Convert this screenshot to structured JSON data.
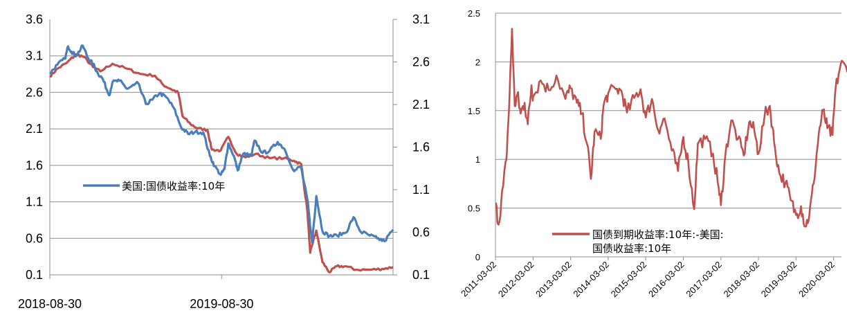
{
  "colors": {
    "blue": "#4a7ebb",
    "red": "#c0504d",
    "grid": "#8c8c8c",
    "axis": "#8c8c8c"
  },
  "chart_data": [
    {
      "type": "line",
      "title": "",
      "xlabel": "",
      "ylabel": "",
      "x_range": [
        "2018-08-30",
        "2020-08-28"
      ],
      "x_ticks": [
        "2018-08-30",
        "2019-08-30"
      ],
      "ylim_left": [
        0.1,
        3.6
      ],
      "yticks_left": [
        "3.6",
        "3.1",
        "2.6",
        "2.1",
        "1.6",
        "1.1",
        "0.6",
        "0.1"
      ],
      "ylim_right": [
        0.1,
        3.1
      ],
      "yticks_right": [
        "3.1",
        "2.6",
        "2.1",
        "1.6",
        "1.1",
        "0.6",
        "0.1"
      ],
      "grid": true,
      "legend_position": "center-left",
      "series": [
        {
          "name": "美国:国债收益率:10年",
          "axis": "left",
          "color": "#4a7ebb",
          "points": [
            [
              "2018-08-30",
              2.86
            ],
            [
              "2018-09-15",
              2.98
            ],
            [
              "2018-10-01",
              3.06
            ],
            [
              "2018-10-08",
              3.23
            ],
            [
              "2018-10-15",
              3.16
            ],
            [
              "2018-10-25",
              3.1
            ],
            [
              "2018-11-08",
              3.24
            ],
            [
              "2018-11-20",
              3.06
            ],
            [
              "2018-11-30",
              2.99
            ],
            [
              "2018-12-10",
              2.86
            ],
            [
              "2018-12-20",
              2.79
            ],
            [
              "2019-01-03",
              2.56
            ],
            [
              "2019-01-10",
              2.74
            ],
            [
              "2019-01-25",
              2.76
            ],
            [
              "2019-02-10",
              2.65
            ],
            [
              "2019-02-25",
              2.7
            ],
            [
              "2019-03-05",
              2.73
            ],
            [
              "2019-03-22",
              2.44
            ],
            [
              "2019-04-05",
              2.5
            ],
            [
              "2019-04-20",
              2.59
            ],
            [
              "2019-05-05",
              2.53
            ],
            [
              "2019-05-20",
              2.39
            ],
            [
              "2019-06-05",
              2.12
            ],
            [
              "2019-06-20",
              2.03
            ],
            [
              "2019-07-05",
              2.06
            ],
            [
              "2019-07-22",
              2.05
            ],
            [
              "2019-08-05",
              1.73
            ],
            [
              "2019-08-15",
              1.59
            ],
            [
              "2019-08-28",
              1.47
            ],
            [
              "2019-09-05",
              1.55
            ],
            [
              "2019-09-13",
              1.9
            ],
            [
              "2019-09-25",
              1.73
            ],
            [
              "2019-10-03",
              1.53
            ],
            [
              "2019-10-15",
              1.76
            ],
            [
              "2019-11-01",
              1.73
            ],
            [
              "2019-11-08",
              1.94
            ],
            [
              "2019-11-25",
              1.77
            ],
            [
              "2019-12-10",
              1.8
            ],
            [
              "2019-12-27",
              1.92
            ],
            [
              "2020-01-10",
              1.83
            ],
            [
              "2020-01-31",
              1.52
            ],
            [
              "2020-02-14",
              1.59
            ],
            [
              "2020-02-28",
              1.13
            ],
            [
              "2020-03-06",
              0.72
            ],
            [
              "2020-03-09",
              0.54
            ],
            [
              "2020-03-18",
              1.18
            ],
            [
              "2020-03-31",
              0.7
            ],
            [
              "2020-04-15",
              0.63
            ],
            [
              "2020-05-01",
              0.64
            ],
            [
              "2020-05-20",
              0.68
            ],
            [
              "2020-06-05",
              0.89
            ],
            [
              "2020-06-20",
              0.69
            ],
            [
              "2020-07-10",
              0.64
            ],
            [
              "2020-07-25",
              0.6
            ],
            [
              "2020-08-10",
              0.56
            ],
            [
              "2020-08-28",
              0.72
            ]
          ]
        },
        {
          "name": "",
          "axis": "right",
          "color": "#c0504d",
          "points": [
            [
              "2018-08-30",
              2.43
            ],
            [
              "2018-09-15",
              2.52
            ],
            [
              "2018-10-05",
              2.59
            ],
            [
              "2018-10-25",
              2.69
            ],
            [
              "2018-11-10",
              2.66
            ],
            [
              "2018-11-30",
              2.54
            ],
            [
              "2018-12-15",
              2.49
            ],
            [
              "2019-01-10",
              2.58
            ],
            [
              "2019-02-10",
              2.52
            ],
            [
              "2019-03-10",
              2.46
            ],
            [
              "2019-04-10",
              2.44
            ],
            [
              "2019-04-28",
              2.33
            ],
            [
              "2019-05-15",
              2.28
            ],
            [
              "2019-05-30",
              2.24
            ],
            [
              "2019-06-08",
              1.96
            ],
            [
              "2019-06-25",
              1.87
            ],
            [
              "2019-07-10",
              1.82
            ],
            [
              "2019-07-31",
              1.8
            ],
            [
              "2019-08-09",
              1.57
            ],
            [
              "2019-08-28",
              1.56
            ],
            [
              "2019-09-13",
              1.72
            ],
            [
              "2019-10-01",
              1.52
            ],
            [
              "2019-10-20",
              1.48
            ],
            [
              "2019-11-10",
              1.52
            ],
            [
              "2019-12-10",
              1.47
            ],
            [
              "2020-01-10",
              1.47
            ],
            [
              "2020-01-31",
              1.44
            ],
            [
              "2020-02-15",
              1.4
            ],
            [
              "2020-02-28",
              0.85
            ],
            [
              "2020-03-05",
              0.36
            ],
            [
              "2020-03-09",
              0.45
            ],
            [
              "2020-03-18",
              0.62
            ],
            [
              "2020-03-31",
              0.25
            ],
            [
              "2020-04-15",
              0.13
            ],
            [
              "2020-04-30",
              0.2
            ],
            [
              "2020-05-20",
              0.2
            ],
            [
              "2020-06-10",
              0.16
            ],
            [
              "2020-07-10",
              0.16
            ],
            [
              "2020-08-05",
              0.17
            ],
            [
              "2020-08-28",
              0.19
            ]
          ]
        }
      ]
    },
    {
      "type": "line",
      "title": "",
      "xlabel": "",
      "ylabel": "",
      "x_range": [
        "2011-03-02",
        "2020-08-28"
      ],
      "x_ticks": [
        "2011-03-02",
        "2012-03-02",
        "2013-03-02",
        "2014-03-02",
        "2015-03-02",
        "2016-03-02",
        "2017-03-02",
        "2018-03-02",
        "2019-03-02",
        "2020-03-02"
      ],
      "ylim": [
        0,
        2.5
      ],
      "yticks": [
        "2.5",
        "2",
        "1.5",
        "1",
        "0.5",
        "0"
      ],
      "grid": true,
      "legend_position": "bottom-center",
      "series": [
        {
          "name": "国债到期收益率:10年:-美国:国债收益率:10年",
          "color": "#c0504d",
          "points": [
            [
              "2011-03-02",
              0.55
            ],
            [
              "2011-04-01",
              0.33
            ],
            [
              "2011-05-15",
              0.72
            ],
            [
              "2011-06-15",
              0.99
            ],
            [
              "2011-07-15",
              1.6
            ],
            [
              "2011-08-10",
              2.34
            ],
            [
              "2011-09-05",
              1.55
            ],
            [
              "2011-10-01",
              1.67
            ],
            [
              "2011-11-01",
              1.47
            ],
            [
              "2011-12-10",
              1.58
            ],
            [
              "2012-01-10",
              1.36
            ],
            [
              "2012-02-15",
              1.76
            ],
            [
              "2012-03-02",
              1.64
            ],
            [
              "2012-05-15",
              1.81
            ],
            [
              "2012-08-01",
              1.71
            ],
            [
              "2012-10-15",
              1.86
            ],
            [
              "2013-01-10",
              1.62
            ],
            [
              "2013-03-02",
              1.73
            ],
            [
              "2013-05-01",
              1.58
            ],
            [
              "2013-06-20",
              1.47
            ],
            [
              "2013-08-10",
              1.15
            ],
            [
              "2013-09-15",
              0.8
            ],
            [
              "2013-10-20",
              1.28
            ],
            [
              "2013-12-20",
              1.21
            ],
            [
              "2014-01-15",
              1.55
            ],
            [
              "2014-03-02",
              1.68
            ],
            [
              "2014-05-15",
              1.72
            ],
            [
              "2014-07-10",
              1.7
            ],
            [
              "2014-09-01",
              1.48
            ],
            [
              "2014-11-10",
              1.63
            ],
            [
              "2015-01-10",
              1.72
            ],
            [
              "2015-03-02",
              1.43
            ],
            [
              "2015-05-01",
              1.62
            ],
            [
              "2015-07-01",
              1.3
            ],
            [
              "2015-09-01",
              1.42
            ],
            [
              "2015-11-10",
              1.09
            ],
            [
              "2016-01-10",
              0.88
            ],
            [
              "2016-03-02",
              1.23
            ],
            [
              "2016-04-20",
              0.96
            ],
            [
              "2016-06-15",
              0.49
            ],
            [
              "2016-07-20",
              1.16
            ],
            [
              "2016-10-01",
              1.21
            ],
            [
              "2016-12-15",
              1.06
            ],
            [
              "2017-02-10",
              0.7
            ],
            [
              "2017-03-02",
              0.53
            ],
            [
              "2017-04-15",
              1.05
            ],
            [
              "2017-06-10",
              1.4
            ],
            [
              "2017-08-15",
              1.21
            ],
            [
              "2017-10-10",
              1.04
            ],
            [
              "2017-12-01",
              1.38
            ],
            [
              "2018-01-20",
              1.3
            ],
            [
              "2018-03-02",
              1.06
            ],
            [
              "2018-05-01",
              1.45
            ],
            [
              "2018-06-20",
              1.55
            ],
            [
              "2018-08-01",
              1.18
            ],
            [
              "2018-09-20",
              0.86
            ],
            [
              "2018-11-20",
              0.76
            ],
            [
              "2019-01-10",
              0.58
            ],
            [
              "2019-03-02",
              0.43
            ],
            [
              "2019-04-20",
              0.52
            ],
            [
              "2019-06-01",
              0.31
            ],
            [
              "2019-07-10",
              0.43
            ],
            [
              "2019-08-20",
              0.75
            ],
            [
              "2019-10-10",
              1.27
            ],
            [
              "2019-11-20",
              1.5
            ],
            [
              "2020-01-01",
              1.32
            ],
            [
              "2020-02-20",
              1.25
            ],
            [
              "2020-03-20",
              1.72
            ],
            [
              "2020-05-10",
              1.98
            ],
            [
              "2020-07-01",
              1.95
            ],
            [
              "2020-08-28",
              2.04
            ]
          ]
        }
      ]
    }
  ]
}
